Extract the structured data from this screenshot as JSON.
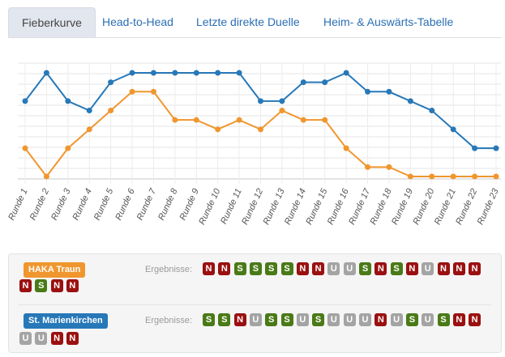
{
  "tabs": [
    {
      "label": "Fieberkurve",
      "active": true
    },
    {
      "label": "Head-to-Head",
      "active": false
    },
    {
      "label": "Letzte direkte Duelle",
      "active": false
    },
    {
      "label": "Heim- & Auswärts-Tabelle",
      "active": false
    }
  ],
  "chart_data": {
    "type": "line",
    "categories": [
      "Runde 1",
      "Runde 2",
      "Runde 3",
      "Runde 4",
      "Runde 5",
      "Runde 6",
      "Runde 7",
      "Runde 8",
      "Runde 9",
      "Runde 10",
      "Runde 11",
      "Runde 12",
      "Runde 13",
      "Runde 14",
      "Runde 15",
      "Runde 16",
      "Runde 17",
      "Runde 18",
      "Runde 19",
      "Runde 20",
      "Runde 21",
      "Runde 22",
      "Runde 23"
    ],
    "y_inverted": true,
    "ylim": [
      1,
      12
    ],
    "grid": true,
    "series": [
      {
        "name": "St. Marienkirchen",
        "color": "#2778b8",
        "values": [
          4,
          1,
          4,
          5,
          2,
          1,
          1,
          1,
          1,
          1,
          1,
          4,
          4,
          2,
          2,
          1,
          3,
          3,
          4,
          5,
          7,
          9,
          9
        ]
      },
      {
        "name": "HAKA Traun",
        "color": "#f0962e",
        "values": [
          9,
          12,
          9,
          7,
          5,
          3,
          3,
          6,
          6,
          7,
          6,
          7,
          5,
          6,
          6,
          9,
          11,
          11,
          12,
          12,
          12,
          12,
          12
        ]
      }
    ]
  },
  "results_panel": {
    "ergebnisse_label": "Ergebnisse:",
    "colors": {
      "S": "#4a7a17",
      "N": "#9b1010",
      "U": "#a4a4a4"
    },
    "teams": [
      {
        "name": "HAKA Traun",
        "color": "#f0962e",
        "results": [
          "N",
          "N",
          "S",
          "S",
          "S",
          "S",
          "N",
          "N",
          "U",
          "U",
          "S",
          "N",
          "S",
          "N",
          "U",
          "N",
          "N",
          "N",
          "N",
          "S",
          "N",
          "N"
        ]
      },
      {
        "name": "St. Marienkirchen",
        "color": "#2778b8",
        "results": [
          "S",
          "S",
          "N",
          "U",
          "S",
          "S",
          "U",
          "S",
          "U",
          "U",
          "U",
          "N",
          "U",
          "S",
          "U",
          "S",
          "N",
          "N",
          "U",
          "U",
          "N",
          "N"
        ]
      }
    ]
  }
}
